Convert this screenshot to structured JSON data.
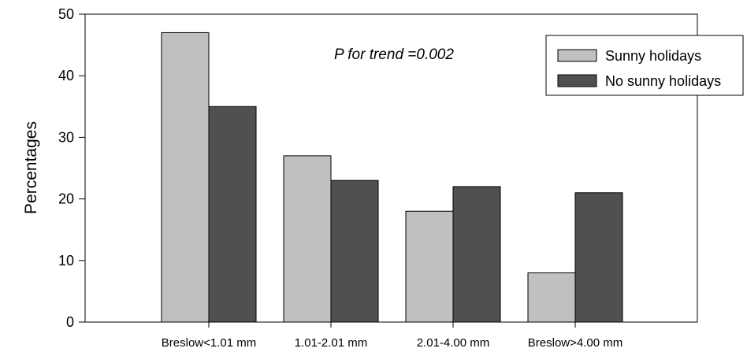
{
  "chart_data": {
    "type": "bar",
    "categories": [
      "Breslow<1.01 mm",
      "1.01-2.01 mm",
      "2.01-4.00 mm",
      "Breslow>4.00 mm"
    ],
    "series": [
      {
        "name": "Sunny holidays",
        "values": [
          47,
          27,
          18,
          8
        ],
        "color": "#c0c0c0"
      },
      {
        "name": "No sunny holidays",
        "values": [
          35,
          23,
          22,
          21
        ],
        "color": "#505050"
      }
    ],
    "ylabel": "Percentages",
    "xlabel": "",
    "ylim": [
      0,
      50
    ],
    "yticks": [
      0,
      10,
      20,
      30,
      40,
      50
    ],
    "annotation": "P for trend =0.002",
    "legend_position": "top-right",
    "grid": false
  }
}
